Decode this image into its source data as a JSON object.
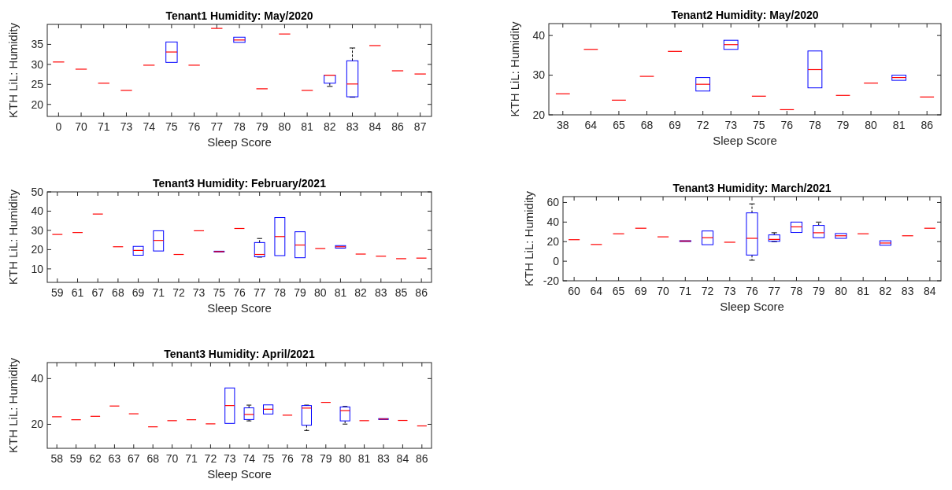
{
  "chart_data": [
    {
      "type": "box",
      "title": "Tenant1 Humidity: May/2020",
      "xlabel": "Sleep Score",
      "ylabel": "KTH LiL: Humidity",
      "ylim": [
        17,
        40
      ],
      "yticks": [
        20,
        25,
        30,
        35
      ],
      "categories": [
        "0",
        "70",
        "71",
        "73",
        "74",
        "75",
        "76",
        "77",
        "78",
        "79",
        "80",
        "81",
        "82",
        "83",
        "84",
        "86",
        "87"
      ],
      "boxes": [
        {
          "low": 30.6,
          "q1": 30.6,
          "median": 30.6,
          "q3": 30.6,
          "high": 30.6
        },
        {
          "low": 28.8,
          "q1": 28.8,
          "median": 28.8,
          "q3": 28.8,
          "high": 28.8
        },
        {
          "low": 25.3,
          "q1": 25.3,
          "median": 25.3,
          "q3": 25.3,
          "high": 25.3
        },
        {
          "low": 23.5,
          "q1": 23.5,
          "median": 23.5,
          "q3": 23.5,
          "high": 23.5
        },
        {
          "low": 29.8,
          "q1": 29.8,
          "median": 29.8,
          "q3": 29.8,
          "high": 29.8
        },
        {
          "low": 30.5,
          "q1": 30.5,
          "median": 33.1,
          "q3": 35.6,
          "high": 35.6
        },
        {
          "low": 29.8,
          "q1": 29.8,
          "median": 29.8,
          "q3": 29.8,
          "high": 29.8
        },
        {
          "low": 39,
          "q1": 39,
          "median": 39,
          "q3": 39,
          "high": 39
        },
        {
          "low": 35.5,
          "q1": 35.5,
          "median": 36.1,
          "q3": 36.8,
          "high": 36.8
        },
        {
          "low": 23.9,
          "q1": 23.9,
          "median": 23.9,
          "q3": 23.9,
          "high": 23.9
        },
        {
          "low": 37.6,
          "q1": 37.6,
          "median": 37.6,
          "q3": 37.6,
          "high": 37.6
        },
        {
          "low": 23.5,
          "q1": 23.5,
          "median": 23.5,
          "q3": 23.5,
          "high": 23.5
        },
        {
          "low": 24.5,
          "q1": 25.3,
          "median": 27.3,
          "q3": 27.3,
          "high": 27.3
        },
        {
          "low": 21.8,
          "q1": 21.9,
          "median": 25.1,
          "q3": 30.9,
          "high": 34.1
        },
        {
          "low": 34.7,
          "q1": 34.7,
          "median": 34.7,
          "q3": 34.7,
          "high": 34.7
        },
        {
          "low": 28.4,
          "q1": 28.4,
          "median": 28.4,
          "q3": 28.4,
          "high": 28.4
        },
        {
          "low": 27.6,
          "q1": 27.6,
          "median": 27.6,
          "q3": 27.6,
          "high": 27.6
        }
      ]
    },
    {
      "type": "box",
      "title": "Tenant2 Humidity: May/2020",
      "xlabel": "Sleep Score",
      "ylabel": "KTH LiL: Humidity",
      "ylim": [
        20,
        43
      ],
      "yticks": [
        20,
        30,
        40
      ],
      "categories": [
        "38",
        "64",
        "65",
        "68",
        "69",
        "72",
        "73",
        "75",
        "76",
        "78",
        "79",
        "80",
        "81",
        "86"
      ],
      "boxes": [
        {
          "low": 25.3,
          "q1": 25.3,
          "median": 25.3,
          "q3": 25.3,
          "high": 25.3
        },
        {
          "low": 36.5,
          "q1": 36.5,
          "median": 36.5,
          "q3": 36.5,
          "high": 36.5
        },
        {
          "low": 23.7,
          "q1": 23.7,
          "median": 23.7,
          "q3": 23.7,
          "high": 23.7
        },
        {
          "low": 29.7,
          "q1": 29.7,
          "median": 29.7,
          "q3": 29.7,
          "high": 29.7
        },
        {
          "low": 36,
          "q1": 36,
          "median": 36,
          "q3": 36,
          "high": 36
        },
        {
          "low": 26,
          "q1": 26,
          "median": 27.7,
          "q3": 29.4,
          "high": 29.4
        },
        {
          "low": 36.5,
          "q1": 36.5,
          "median": 37.7,
          "q3": 38.8,
          "high": 38.8
        },
        {
          "low": 24.7,
          "q1": 24.7,
          "median": 24.7,
          "q3": 24.7,
          "high": 24.7
        },
        {
          "low": 21.3,
          "q1": 21.3,
          "median": 21.3,
          "q3": 21.3,
          "high": 21.3
        },
        {
          "low": 26.8,
          "q1": 26.8,
          "median": 31.4,
          "q3": 36.1,
          "high": 36.1
        },
        {
          "low": 24.9,
          "q1": 24.9,
          "median": 24.9,
          "q3": 24.9,
          "high": 24.9
        },
        {
          "low": 28,
          "q1": 28,
          "median": 28,
          "q3": 28,
          "high": 28
        },
        {
          "low": 28.7,
          "q1": 28.7,
          "median": 29.4,
          "q3": 30,
          "high": 30
        },
        {
          "low": 24.5,
          "q1": 24.5,
          "median": 24.5,
          "q3": 24.5,
          "high": 24.5
        }
      ]
    },
    {
      "type": "box",
      "title": "Tenant3 Humidity: February/2021",
      "xlabel": "Sleep Score",
      "ylabel": "KTH LiL: Humidity",
      "ylim": [
        3,
        50
      ],
      "yticks": [
        10,
        20,
        30,
        40,
        50
      ],
      "categories": [
        "59",
        "61",
        "67",
        "68",
        "69",
        "71",
        "72",
        "73",
        "75",
        "76",
        "77",
        "78",
        "79",
        "80",
        "81",
        "82",
        "83",
        "85",
        "86"
      ],
      "boxes": [
        {
          "low": 27.9,
          "q1": 27.9,
          "median": 27.9,
          "q3": 27.9,
          "high": 27.9
        },
        {
          "low": 28.9,
          "q1": 28.9,
          "median": 28.9,
          "q3": 28.9,
          "high": 28.9
        },
        {
          "low": 38.5,
          "q1": 38.5,
          "median": 38.5,
          "q3": 38.5,
          "high": 38.5
        },
        {
          "low": 21.5,
          "q1": 21.5,
          "median": 21.5,
          "q3": 21.5,
          "high": 21.5
        },
        {
          "low": 17.1,
          "q1": 17.1,
          "median": 19.6,
          "q3": 21.7,
          "high": 21.7
        },
        {
          "low": 19.3,
          "q1": 19.3,
          "median": 24.8,
          "q3": 29.8,
          "high": 29.8
        },
        {
          "low": 17.5,
          "q1": 17.5,
          "median": 17.5,
          "q3": 17.5,
          "high": 17.5
        },
        {
          "low": 29.8,
          "q1": 29.8,
          "median": 29.8,
          "q3": 29.8,
          "high": 29.8
        },
        {
          "low": 18.8,
          "q1": 18.8,
          "median": 19,
          "q3": 19.2,
          "high": 19.2
        },
        {
          "low": 31,
          "q1": 31,
          "median": 31,
          "q3": 31,
          "high": 31
        },
        {
          "low": 16.1,
          "q1": 16.3,
          "median": 17.5,
          "q3": 23.7,
          "high": 25.8
        },
        {
          "low": 16.9,
          "q1": 16.9,
          "median": 26.8,
          "q3": 36.7,
          "high": 36.7
        },
        {
          "low": 15.8,
          "q1": 15.8,
          "median": 22.4,
          "q3": 29.3,
          "high": 29.3
        },
        {
          "low": 20.6,
          "q1": 20.6,
          "median": 20.6,
          "q3": 20.6,
          "high": 20.6
        },
        {
          "low": 20.8,
          "q1": 20.8,
          "median": 21.5,
          "q3": 22.1,
          "high": 22.1
        },
        {
          "low": 17.7,
          "q1": 17.7,
          "median": 17.7,
          "q3": 17.7,
          "high": 17.7
        },
        {
          "low": 16.6,
          "q1": 16.6,
          "median": 16.6,
          "q3": 16.6,
          "high": 16.6
        },
        {
          "low": 15.3,
          "q1": 15.3,
          "median": 15.3,
          "q3": 15.3,
          "high": 15.3
        },
        {
          "low": 15.6,
          "q1": 15.6,
          "median": 15.6,
          "q3": 15.6,
          "high": 15.6
        }
      ]
    },
    {
      "type": "box",
      "title": "Tenant3 Humidity: March/2021",
      "xlabel": "Sleep Score",
      "ylabel": "KTH LiL: Humidity",
      "ylim": [
        -20,
        66
      ],
      "yticks": [
        -20,
        0,
        20,
        40,
        60
      ],
      "categories": [
        "60",
        "64",
        "65",
        "69",
        "70",
        "71",
        "72",
        "73",
        "76",
        "77",
        "78",
        "79",
        "80",
        "81",
        "82",
        "83",
        "84"
      ],
      "boxes": [
        {
          "low": 22,
          "q1": 22,
          "median": 22,
          "q3": 22,
          "high": 22
        },
        {
          "low": 17.1,
          "q1": 17.1,
          "median": 17.1,
          "q3": 17.1,
          "high": 17.1
        },
        {
          "low": 28,
          "q1": 28,
          "median": 28,
          "q3": 28,
          "high": 28
        },
        {
          "low": 33.7,
          "q1": 33.7,
          "median": 33.7,
          "q3": 33.7,
          "high": 33.7
        },
        {
          "low": 24.9,
          "q1": 24.9,
          "median": 24.9,
          "q3": 24.9,
          "high": 24.9
        },
        {
          "low": 20.1,
          "q1": 20.1,
          "median": 20.6,
          "q3": 21,
          "high": 21
        },
        {
          "low": 16.9,
          "q1": 16.9,
          "median": 24,
          "q3": 30.9,
          "high": 30.9
        },
        {
          "low": 19.4,
          "q1": 19.4,
          "median": 19.4,
          "q3": 19.4,
          "high": 19.4
        },
        {
          "low": 1,
          "q1": 6.3,
          "median": 23.4,
          "q3": 49.4,
          "high": 58.6
        },
        {
          "low": 20,
          "q1": 20.3,
          "median": 22.3,
          "q3": 26.9,
          "high": 29.1
        },
        {
          "low": 29.4,
          "q1": 29.4,
          "median": 35.1,
          "q3": 40,
          "high": 40
        },
        {
          "low": 24,
          "q1": 24,
          "median": 29.1,
          "q3": 36.6,
          "high": 40
        },
        {
          "low": 23.4,
          "q1": 23.4,
          "median": 26,
          "q3": 28.3,
          "high": 28.3
        },
        {
          "low": 28,
          "q1": 28,
          "median": 28,
          "q3": 28,
          "high": 28
        },
        {
          "low": 16.3,
          "q1": 16.3,
          "median": 18.6,
          "q3": 20.9,
          "high": 20.9
        },
        {
          "low": 26,
          "q1": 26,
          "median": 26,
          "q3": 26,
          "high": 26
        },
        {
          "low": 33.7,
          "q1": 33.7,
          "median": 33.7,
          "q3": 33.7,
          "high": 33.7
        }
      ]
    },
    {
      "type": "box",
      "title": "Tenant3 Humidity: April/2021",
      "xlabel": "Sleep Score",
      "ylabel": "KTH LiL: Humidity",
      "ylim": [
        9.5,
        47
      ],
      "yticks": [
        20,
        40
      ],
      "categories": [
        "58",
        "59",
        "62",
        "63",
        "67",
        "68",
        "70",
        "71",
        "72",
        "73",
        "74",
        "75",
        "76",
        "78",
        "79",
        "80",
        "81",
        "83",
        "84",
        "86"
      ],
      "boxes": [
        {
          "low": 23.3,
          "q1": 23.3,
          "median": 23.3,
          "q3": 23.3,
          "high": 23.3
        },
        {
          "low": 22,
          "q1": 22,
          "median": 22,
          "q3": 22,
          "high": 22
        },
        {
          "low": 23.5,
          "q1": 23.5,
          "median": 23.5,
          "q3": 23.5,
          "high": 23.5
        },
        {
          "low": 28,
          "q1": 28,
          "median": 28,
          "q3": 28,
          "high": 28
        },
        {
          "low": 24.6,
          "q1": 24.6,
          "median": 24.6,
          "q3": 24.6,
          "high": 24.6
        },
        {
          "low": 18.9,
          "q1": 18.9,
          "median": 18.9,
          "q3": 18.9,
          "high": 18.9
        },
        {
          "low": 21.6,
          "q1": 21.6,
          "median": 21.6,
          "q3": 21.6,
          "high": 21.6
        },
        {
          "low": 22,
          "q1": 22,
          "median": 22,
          "q3": 22,
          "high": 22
        },
        {
          "low": 20.2,
          "q1": 20.2,
          "median": 20.2,
          "q3": 20.2,
          "high": 20.2
        },
        {
          "low": 20.4,
          "q1": 20.4,
          "median": 28.2,
          "q3": 35.9,
          "high": 35.9
        },
        {
          "low": 21.5,
          "q1": 22.1,
          "median": 24.3,
          "q3": 27.2,
          "high": 28.4
        },
        {
          "low": 24.5,
          "q1": 24.5,
          "median": 26.6,
          "q3": 28.5,
          "high": 28.5
        },
        {
          "low": 24,
          "q1": 24,
          "median": 24,
          "q3": 24,
          "high": 24
        },
        {
          "low": 17.3,
          "q1": 19.6,
          "median": 27.1,
          "q3": 28.2,
          "high": 28.4
        },
        {
          "low": 29.6,
          "q1": 29.6,
          "median": 29.6,
          "q3": 29.6,
          "high": 29.6
        },
        {
          "low": 20.1,
          "q1": 21.5,
          "median": 26,
          "q3": 27.6,
          "high": 27.8
        },
        {
          "low": 21.6,
          "q1": 21.6,
          "median": 21.6,
          "q3": 21.6,
          "high": 21.6
        },
        {
          "low": 22.1,
          "q1": 22.1,
          "median": 22.3,
          "q3": 22.5,
          "high": 22.5
        },
        {
          "low": 21.7,
          "q1": 21.7,
          "median": 21.7,
          "q3": 21.7,
          "high": 21.7
        },
        {
          "low": 19.3,
          "q1": 19.3,
          "median": 19.3,
          "q3": 19.3,
          "high": 19.3
        }
      ]
    }
  ]
}
